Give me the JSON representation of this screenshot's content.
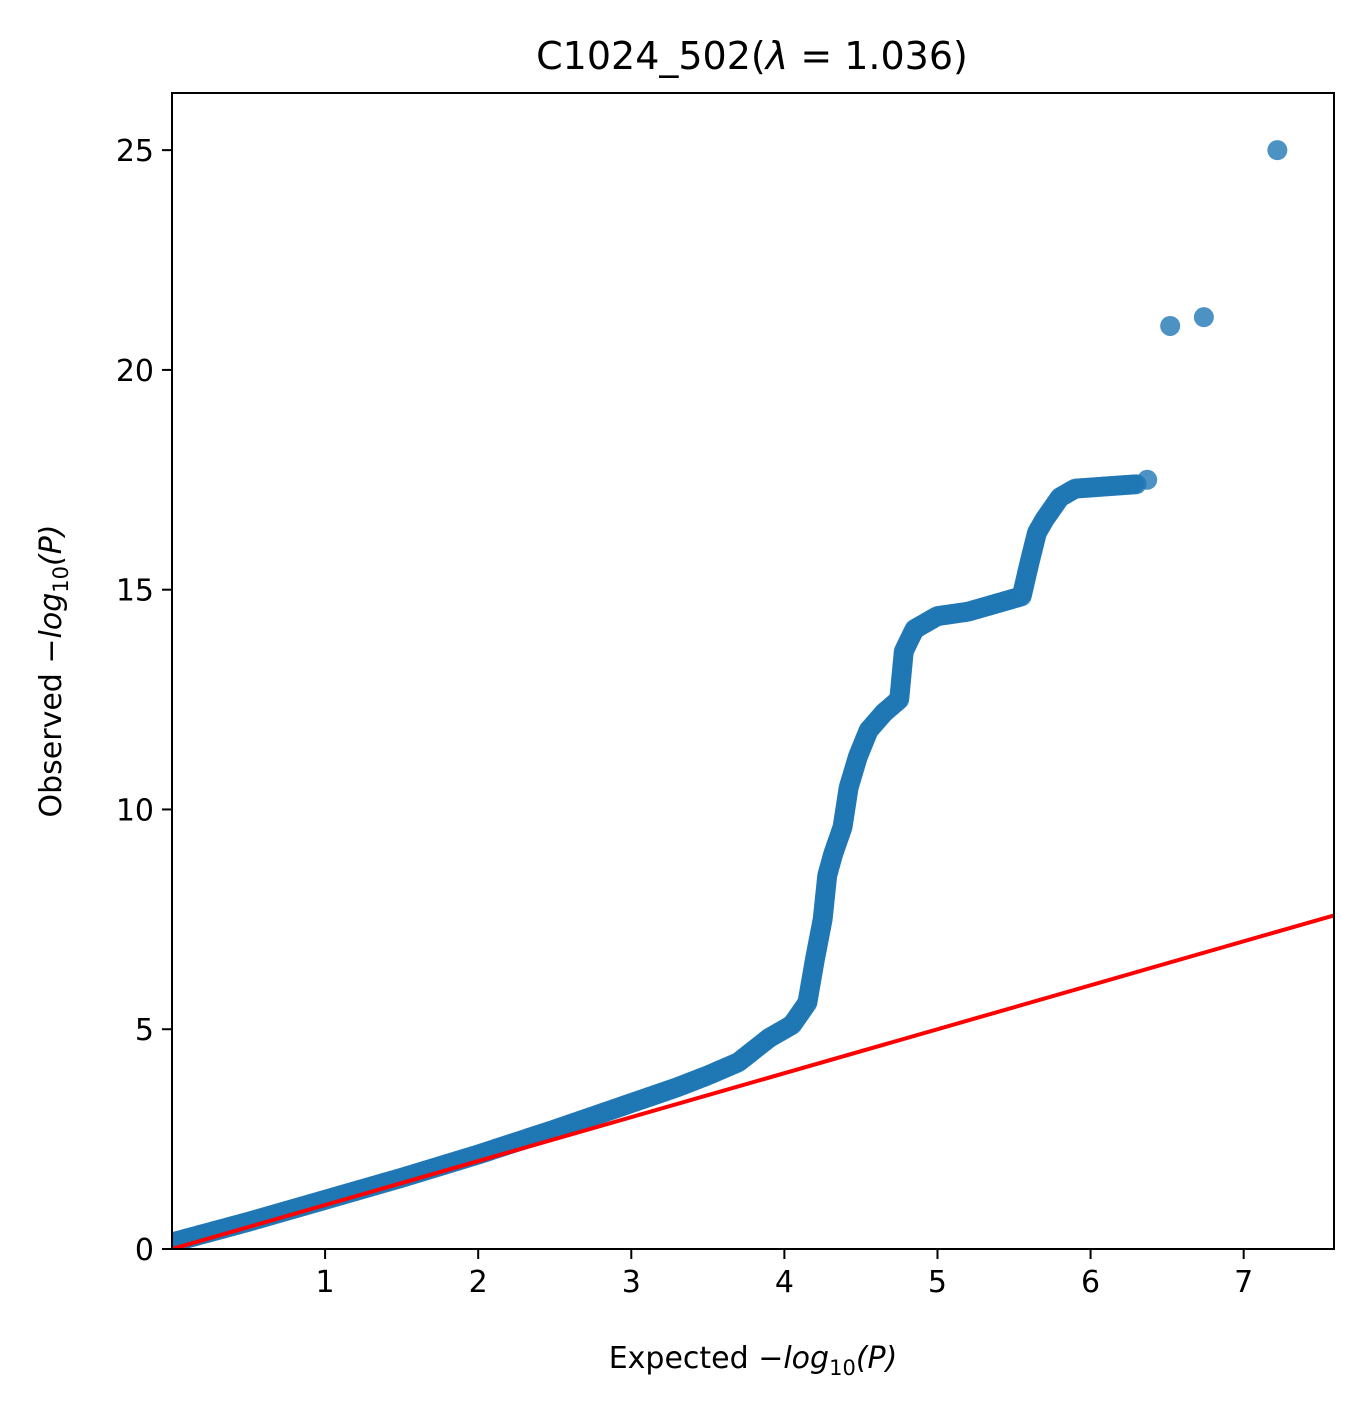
{
  "chart_data": {
    "type": "scatter",
    "title": {
      "prefix": "C1024_502(",
      "lambda_symbol": "λ",
      "equals": " = ",
      "lambda_value": "1.036",
      "suffix": ")"
    },
    "xlabel": {
      "prefix": "Expected ",
      "minus": "−",
      "log": "log",
      "base": "10",
      "arg": "(P)"
    },
    "ylabel": {
      "prefix": "Observed ",
      "minus": "−",
      "log": "log",
      "base": "10",
      "arg": "(P)"
    },
    "xlim": [
      0,
      7.59
    ],
    "ylim": [
      0,
      26.3
    ],
    "x_ticks": [
      1,
      2,
      3,
      4,
      5,
      6,
      7
    ],
    "y_ticks": [
      0,
      5,
      10,
      15,
      20,
      25
    ],
    "grid": false,
    "point_color": "#1f77b4",
    "line_color": "#ff0000",
    "reference_line": {
      "from": [
        0,
        0
      ],
      "to": [
        7.59,
        7.59
      ]
    },
    "qq_curve": [
      [
        0.0,
        0.15
      ],
      [
        0.5,
        0.62
      ],
      [
        1.0,
        1.12
      ],
      [
        1.5,
        1.62
      ],
      [
        2.0,
        2.15
      ],
      [
        2.5,
        2.72
      ],
      [
        3.0,
        3.32
      ],
      [
        3.3,
        3.68
      ],
      [
        3.5,
        3.95
      ],
      [
        3.7,
        4.25
      ],
      [
        3.9,
        4.8
      ],
      [
        4.05,
        5.1
      ],
      [
        4.15,
        5.6
      ],
      [
        4.2,
        6.6
      ],
      [
        4.25,
        7.5
      ],
      [
        4.28,
        8.5
      ],
      [
        4.32,
        9.0
      ],
      [
        4.38,
        9.6
      ],
      [
        4.42,
        10.5
      ],
      [
        4.48,
        11.2
      ],
      [
        4.55,
        11.8
      ],
      [
        4.65,
        12.2
      ],
      [
        4.75,
        12.5
      ],
      [
        4.78,
        13.6
      ],
      [
        4.85,
        14.1
      ],
      [
        5.0,
        14.4
      ],
      [
        5.2,
        14.5
      ],
      [
        5.4,
        14.7
      ],
      [
        5.55,
        14.85
      ],
      [
        5.6,
        15.6
      ],
      [
        5.65,
        16.3
      ],
      [
        5.7,
        16.6
      ],
      [
        5.8,
        17.1
      ],
      [
        5.9,
        17.3
      ],
      [
        6.1,
        17.35
      ],
      [
        6.3,
        17.4
      ]
    ],
    "outliers": [
      [
        6.37,
        17.5
      ],
      [
        6.52,
        21.0
      ],
      [
        6.74,
        21.2
      ],
      [
        7.22,
        25.0
      ]
    ]
  }
}
